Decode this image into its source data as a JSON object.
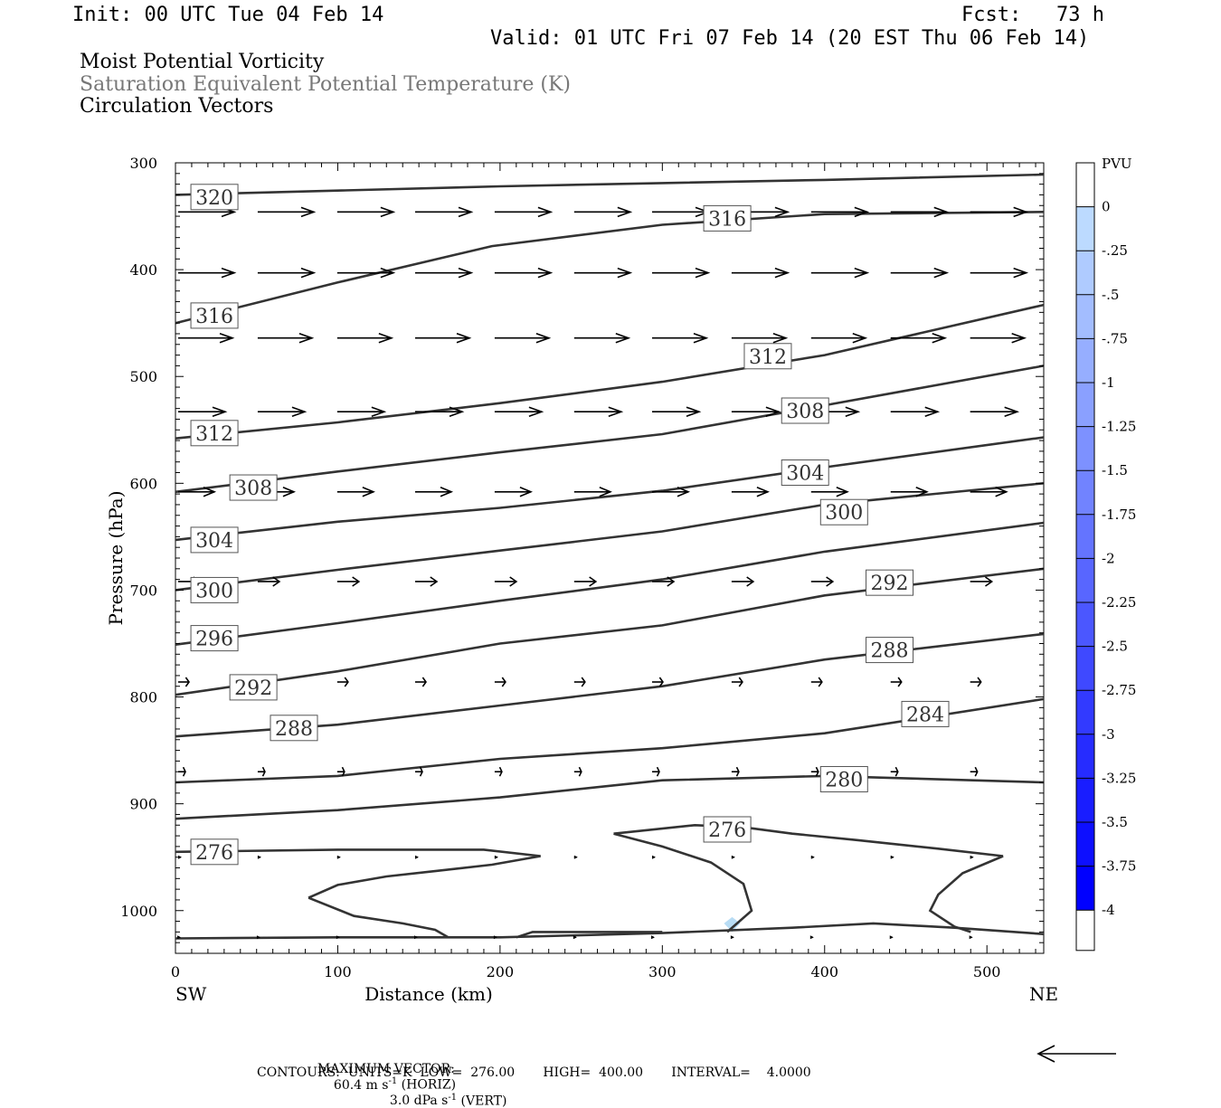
{
  "header": {
    "init": "Init: 00 UTC Tue 04 Feb 14",
    "fcst_label": "Fcst:",
    "fcst_value": "73 h",
    "valid": "Valid: 01 UTC Fri 07 Feb 14 (20 EST Thu 06 Feb 14)"
  },
  "fields": {
    "line1": "Moist Potential Vorticity",
    "line2": "Saturation Equivalent Potential Temperature (K)",
    "line3": "Circulation Vectors"
  },
  "colors": {
    "contour": "#333333",
    "field2_text": "#777777",
    "pv_light": "#b8dcf4"
  },
  "chart_data": {
    "type": "cross-section",
    "xlabel": "Distance (km)",
    "ylabel": "Pressure (hPa)",
    "xlim": [
      0,
      535
    ],
    "ylim": [
      1040,
      300
    ],
    "x_ticks": [
      0,
      100,
      200,
      300,
      400,
      500
    ],
    "y_ticks": [
      300,
      400,
      500,
      600,
      700,
      800,
      900,
      1000
    ],
    "x_end_labels": {
      "left": "SW",
      "right": "NE"
    },
    "contours": [
      {
        "label": "320",
        "points": [
          [
            0,
            330
          ],
          [
            100,
            326
          ],
          [
            200,
            322
          ],
          [
            300,
            319
          ],
          [
            400,
            316
          ],
          [
            535,
            311
          ]
        ],
        "labels_at": [
          [
            24,
            332
          ]
        ]
      },
      {
        "label": "316",
        "points": [
          [
            0,
            450
          ],
          [
            100,
            412
          ],
          [
            195,
            378
          ],
          [
            300,
            358
          ],
          [
            400,
            348
          ],
          [
            535,
            346
          ]
        ],
        "labels_at": [
          [
            24,
            443
          ],
          [
            340,
            352
          ]
        ]
      },
      {
        "label": "312",
        "points": [
          [
            0,
            558
          ],
          [
            100,
            543
          ],
          [
            200,
            525
          ],
          [
            300,
            505
          ],
          [
            400,
            480
          ],
          [
            535,
            433
          ]
        ],
        "labels_at": [
          [
            24,
            553
          ],
          [
            365,
            481
          ]
        ]
      },
      {
        "label": "308",
        "points": [
          [
            0,
            608
          ],
          [
            100,
            589
          ],
          [
            200,
            571
          ],
          [
            300,
            554
          ],
          [
            400,
            527
          ],
          [
            535,
            490
          ]
        ],
        "labels_at": [
          [
            48,
            604
          ],
          [
            388,
            532
          ]
        ]
      },
      {
        "label": "304",
        "points": [
          [
            0,
            653
          ],
          [
            100,
            636
          ],
          [
            200,
            623
          ],
          [
            300,
            607
          ],
          [
            400,
            585
          ],
          [
            535,
            557
          ]
        ],
        "labels_at": [
          [
            24,
            653
          ],
          [
            388,
            590
          ]
        ]
      },
      {
        "label": "300",
        "points": [
          [
            0,
            700
          ],
          [
            100,
            681
          ],
          [
            200,
            663
          ],
          [
            300,
            645
          ],
          [
            400,
            620
          ],
          [
            535,
            600
          ]
        ],
        "labels_at": [
          [
            24,
            700
          ],
          [
            412,
            627
          ]
        ]
      },
      {
        "label": "296",
        "points": [
          [
            0,
            751
          ],
          [
            100,
            731
          ],
          [
            200,
            710
          ],
          [
            300,
            690
          ],
          [
            400,
            664
          ],
          [
            535,
            637
          ]
        ],
        "labels_at": [
          [
            24,
            745
          ]
        ]
      },
      {
        "label": "292",
        "points": [
          [
            0,
            798
          ],
          [
            100,
            776
          ],
          [
            200,
            750
          ],
          [
            300,
            733
          ],
          [
            400,
            705
          ],
          [
            535,
            680
          ]
        ],
        "labels_at": [
          [
            48,
            791
          ],
          [
            440,
            693
          ]
        ]
      },
      {
        "label": "288",
        "points": [
          [
            0,
            837
          ],
          [
            100,
            826
          ],
          [
            200,
            808
          ],
          [
            300,
            790
          ],
          [
            400,
            765
          ],
          [
            535,
            741
          ]
        ],
        "labels_at": [
          [
            73,
            829
          ],
          [
            440,
            756
          ]
        ]
      },
      {
        "label": "284",
        "points": [
          [
            0,
            880
          ],
          [
            100,
            874
          ],
          [
            200,
            858
          ],
          [
            300,
            848
          ],
          [
            400,
            834
          ],
          [
            535,
            802
          ]
        ],
        "labels_at": [
          [
            462,
            816
          ]
        ]
      },
      {
        "label": "280",
        "points": [
          [
            0,
            914
          ],
          [
            100,
            906
          ],
          [
            200,
            894
          ],
          [
            300,
            878
          ],
          [
            400,
            874
          ],
          [
            535,
            880
          ]
        ],
        "labels_at": [
          [
            412,
            877
          ]
        ]
      },
      {
        "label": "276",
        "points": [
          [
            0,
            945
          ],
          [
            100,
            943
          ],
          [
            190,
            943
          ],
          [
            225,
            949
          ]
        ],
        "labels_at": [
          [
            24,
            945
          ],
          [
            340,
            924
          ]
        ]
      }
    ],
    "vector_rows_hpa": [
      346,
      403,
      464,
      533,
      608,
      692,
      786,
      870,
      950,
      1025
    ],
    "vector_columns_km": [
      0,
      49,
      98,
      146,
      195,
      244,
      292,
      341,
      390,
      439,
      488
    ],
    "pv_colorbar": {
      "unit": "PVU",
      "labels": [
        "0",
        "-.25",
        "-.5",
        "-.75",
        "-1",
        "-1.25",
        "-1.5",
        "-1.75",
        "-2",
        "-2.25",
        "-2.5",
        "-2.75",
        "-3",
        "-3.25",
        "-3.5",
        "-3.75",
        "-4"
      ]
    }
  },
  "footer": {
    "max_vector_label": "MAXIMUM VECTOR:",
    "max_horiz": "60.4 m s",
    "max_horiz_exp": "-1",
    "max_horiz_unit": " (HORIZ)",
    "max_vert": "3.0 dPa s",
    "max_vert_exp": "-1",
    "max_vert_unit": " (VERT)",
    "contours_line": "CONTOURS:  UNITS=K  LOW=  276.00       HIGH=  400.00       INTERVAL=    4.0000"
  }
}
